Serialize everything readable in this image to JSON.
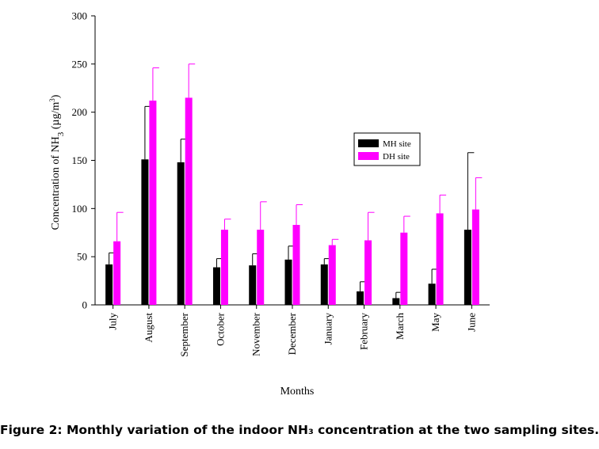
{
  "caption": "Figure 2: Monthly variation of the indoor NH₃ concentration at the two sampling sites.",
  "chart_data": {
    "type": "bar",
    "ylabel_prefix": "Concentration of NH",
    "ylabel_sub": "3",
    "ylabel_unit": " (µg/m",
    "ylabel_sup": "3",
    "ylabel_close": ")",
    "xlabel": "Months",
    "ylim": [
      0,
      300
    ],
    "yticks": [
      "0",
      "50",
      "100",
      "150",
      "200",
      "250",
      "300"
    ],
    "grid": false,
    "legend_position": "top-right",
    "categories": [
      "July",
      "August",
      "September",
      "October",
      "November",
      "December",
      "January",
      "February",
      "March",
      "May",
      "June"
    ],
    "series": [
      {
        "name": "MH site",
        "color": "#000000",
        "values": [
          42,
          151,
          148,
          39,
          41,
          47,
          42,
          14,
          7,
          22,
          78
        ],
        "error": [
          12,
          55,
          24,
          9,
          12,
          14,
          6,
          10,
          6,
          15,
          80
        ]
      },
      {
        "name": "DH site",
        "color": "#ff00ff",
        "values": [
          66,
          212,
          215,
          78,
          78,
          83,
          62,
          67,
          75,
          95,
          99
        ],
        "error": [
          30,
          34,
          35,
          11,
          29,
          21,
          6,
          29,
          17,
          19,
          33
        ]
      }
    ]
  }
}
